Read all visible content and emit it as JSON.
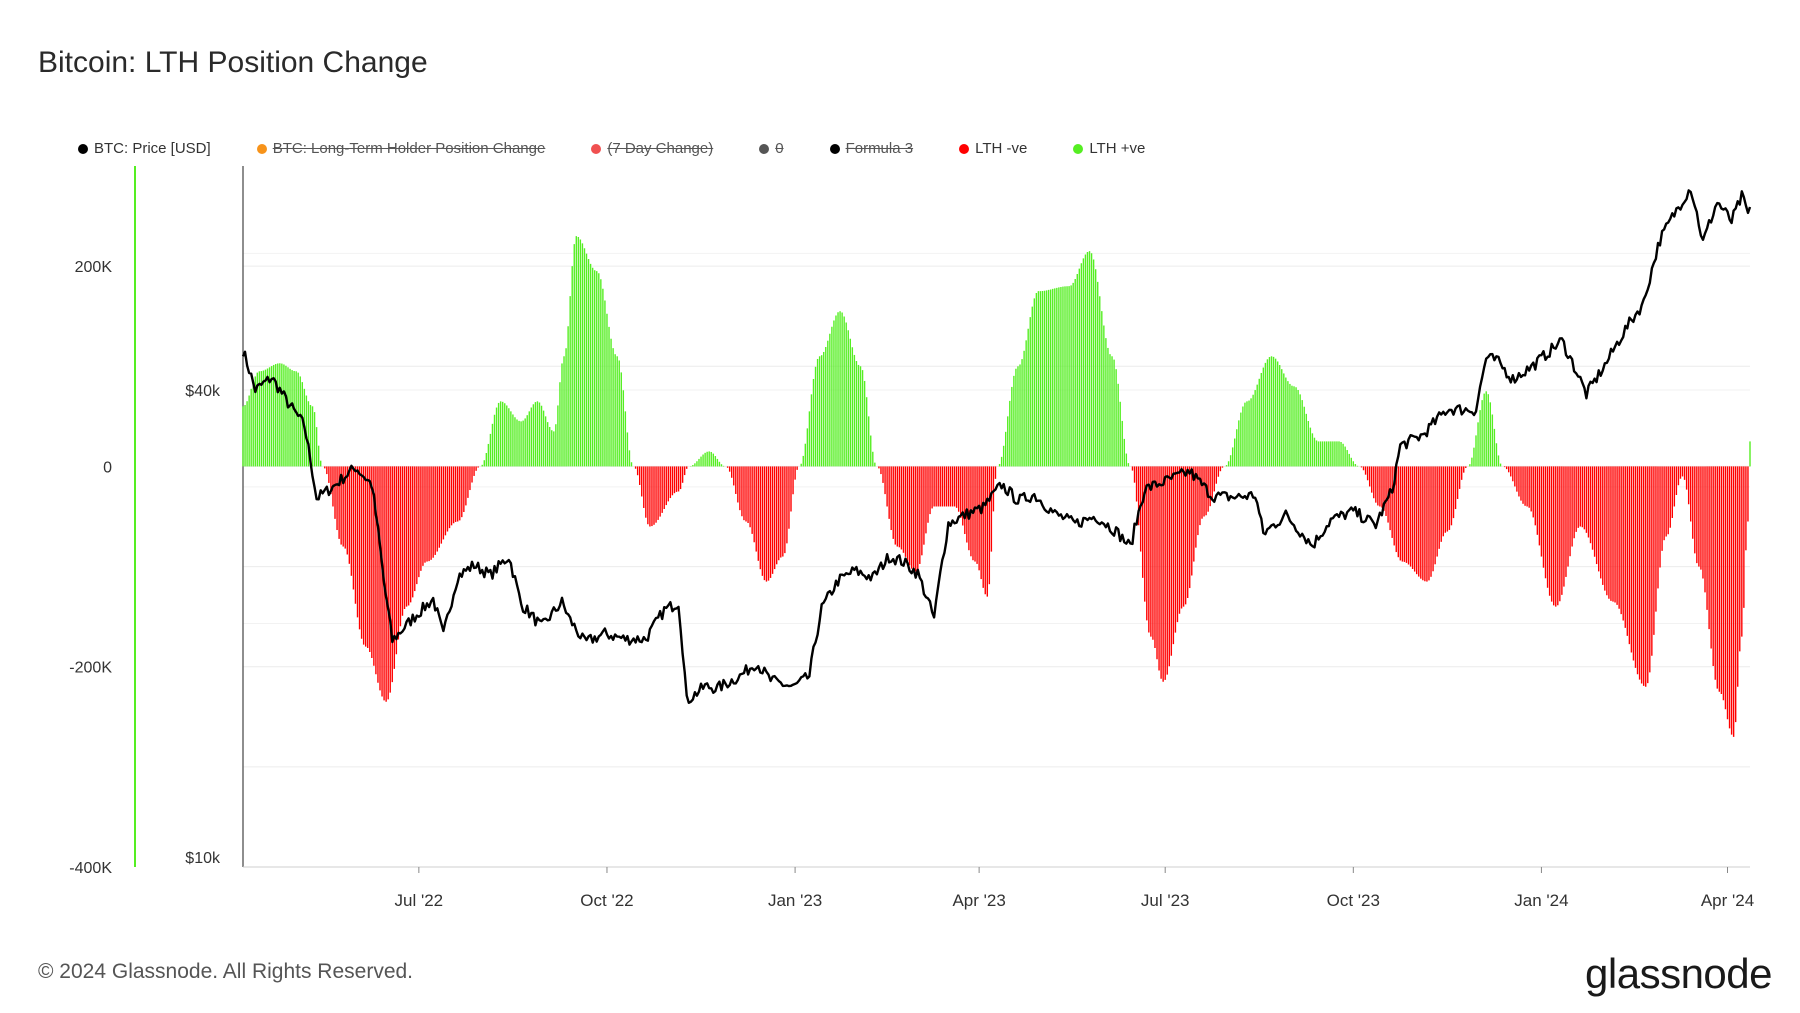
{
  "title": "Bitcoin: LTH Position Change",
  "legend": [
    {
      "label": "BTC: Price [USD]",
      "color": "#000000",
      "enabled": true
    },
    {
      "label": "BTC: Long-Term Holder Position Change",
      "color": "#f7931a",
      "enabled": false
    },
    {
      "label": "(7 Day Change)",
      "color": "#f05050",
      "enabled": false
    },
    {
      "label": "0",
      "color": "#555555",
      "enabled": false
    },
    {
      "label": "Formula 3",
      "color": "#000000",
      "enabled": false
    },
    {
      "label": "LTH -ve",
      "color": "#ff0000",
      "enabled": true
    },
    {
      "label": "LTH +ve",
      "color": "#55ee22",
      "enabled": true
    }
  ],
  "footer": "© 2024 Glassnode. All Rights Reserved.",
  "brand": "glassnode",
  "chart_data": {
    "type": "bar",
    "x_ticks": [
      "Jul '22",
      "Oct '22",
      "Jan '23",
      "Apr '23",
      "Jul '23",
      "Oct '23",
      "Jan '24",
      "Apr '24"
    ],
    "x_range": [
      "2022-04-06",
      "2024-04-12"
    ],
    "left_axis": {
      "ticks": [
        "200K",
        "0",
        "-200K",
        "-400K"
      ],
      "values": [
        200000,
        0,
        -200000,
        -400000
      ],
      "range": [
        -400000,
        300000
      ]
    },
    "right_axis": {
      "ticks": [
        "$40k",
        "$10k"
      ],
      "values": [
        40000,
        10000
      ],
      "scale": "log"
    },
    "grid": true,
    "position_change_anchors": [
      [
        "2022-04-06",
        60000
      ],
      [
        "2022-04-14",
        95000
      ],
      [
        "2022-04-24",
        103000
      ],
      [
        "2022-05-02",
        95000
      ],
      [
        "2022-05-10",
        60000
      ],
      [
        "2022-05-15",
        0
      ],
      [
        "2022-05-25",
        -80000
      ],
      [
        "2022-06-05",
        -180000
      ],
      [
        "2022-06-15",
        -235000
      ],
      [
        "2022-06-25",
        -140000
      ],
      [
        "2022-07-05",
        -95000
      ],
      [
        "2022-07-20",
        -55000
      ],
      [
        "2022-07-31",
        0
      ],
      [
        "2022-08-10",
        65000
      ],
      [
        "2022-08-20",
        45000
      ],
      [
        "2022-08-28",
        65000
      ],
      [
        "2022-09-05",
        35000
      ],
      [
        "2022-09-10",
        110000
      ],
      [
        "2022-09-16",
        230000
      ],
      [
        "2022-09-26",
        195000
      ],
      [
        "2022-10-06",
        110000
      ],
      [
        "2022-10-14",
        0
      ],
      [
        "2022-10-22",
        -60000
      ],
      [
        "2022-11-05",
        -25000
      ],
      [
        "2022-11-10",
        0
      ],
      [
        "2022-11-20",
        15000
      ],
      [
        "2022-11-28",
        0
      ],
      [
        "2022-12-08",
        -55000
      ],
      [
        "2022-12-18",
        -115000
      ],
      [
        "2022-12-26",
        -90000
      ],
      [
        "2023-01-03",
        0
      ],
      [
        "2023-01-13",
        110000
      ],
      [
        "2023-01-23",
        155000
      ],
      [
        "2023-02-02",
        100000
      ],
      [
        "2023-02-10",
        0
      ],
      [
        "2023-02-20",
        -80000
      ],
      [
        "2023-03-01",
        -105000
      ],
      [
        "2023-03-10",
        -40000
      ],
      [
        "2023-03-20",
        -40000
      ],
      [
        "2023-03-30",
        -95000
      ],
      [
        "2023-04-05",
        -130000
      ],
      [
        "2023-04-10",
        0
      ],
      [
        "2023-04-20",
        100000
      ],
      [
        "2023-04-30",
        175000
      ],
      [
        "2023-05-15",
        180000
      ],
      [
        "2023-05-25",
        215000
      ],
      [
        "2023-06-05",
        110000
      ],
      [
        "2023-06-14",
        0
      ],
      [
        "2023-06-24",
        -170000
      ],
      [
        "2023-06-30",
        -215000
      ],
      [
        "2023-07-10",
        -140000
      ],
      [
        "2023-07-20",
        -50000
      ],
      [
        "2023-07-30",
        0
      ],
      [
        "2023-08-10",
        65000
      ],
      [
        "2023-08-22",
        110000
      ],
      [
        "2023-09-02",
        80000
      ],
      [
        "2023-09-14",
        25000
      ],
      [
        "2023-09-24",
        25000
      ],
      [
        "2023-10-04",
        0
      ],
      [
        "2023-10-14",
        -40000
      ],
      [
        "2023-10-25",
        -95000
      ],
      [
        "2023-11-06",
        -115000
      ],
      [
        "2023-11-16",
        -65000
      ],
      [
        "2023-11-26",
        0
      ],
      [
        "2023-12-05",
        75000
      ],
      [
        "2023-12-13",
        0
      ],
      [
        "2023-12-25",
        -40000
      ],
      [
        "2024-01-08",
        -140000
      ],
      [
        "2024-01-20",
        -60000
      ],
      [
        "2024-02-05",
        -135000
      ],
      [
        "2024-02-21",
        -220000
      ],
      [
        "2024-03-02",
        -70000
      ],
      [
        "2024-03-10",
        -10000
      ],
      [
        "2024-03-18",
        -100000
      ],
      [
        "2024-03-28",
        -225000
      ],
      [
        "2024-04-04",
        -270000
      ],
      [
        "2024-04-08",
        -170000
      ],
      [
        "2024-04-11",
        -55000
      ],
      [
        "2024-04-12",
        25000
      ]
    ],
    "price_series": [
      [
        "2022-04-06",
        45000
      ],
      [
        "2022-04-12",
        40000
      ],
      [
        "2022-04-20",
        41500
      ],
      [
        "2022-04-28",
        38500
      ],
      [
        "2022-05-06",
        36000
      ],
      [
        "2022-05-12",
        29000
      ],
      [
        "2022-05-20",
        30000
      ],
      [
        "2022-05-31",
        31800
      ],
      [
        "2022-06-08",
        30200
      ],
      [
        "2022-06-14",
        22500
      ],
      [
        "2022-06-18",
        19000
      ],
      [
        "2022-06-28",
        20300
      ],
      [
        "2022-07-08",
        21500
      ],
      [
        "2022-07-13",
        19300
      ],
      [
        "2022-07-20",
        23000
      ],
      [
        "2022-07-28",
        23800
      ],
      [
        "2022-08-05",
        23100
      ],
      [
        "2022-08-14",
        24400
      ],
      [
        "2022-08-20",
        21200
      ],
      [
        "2022-08-30",
        19800
      ],
      [
        "2022-09-09",
        21300
      ],
      [
        "2022-09-13",
        20200
      ],
      [
        "2022-09-20",
        18900
      ],
      [
        "2022-09-30",
        19400
      ],
      [
        "2022-10-10",
        19100
      ],
      [
        "2022-10-20",
        19100
      ],
      [
        "2022-10-29",
        20800
      ],
      [
        "2022-11-05",
        21300
      ],
      [
        "2022-11-09",
        15900
      ],
      [
        "2022-11-18",
        16600
      ],
      [
        "2022-11-24",
        16500
      ],
      [
        "2022-12-05",
        17100
      ],
      [
        "2022-12-13",
        17800
      ],
      [
        "2022-12-20",
        16900
      ],
      [
        "2022-12-31",
        16550
      ],
      [
        "2023-01-08",
        17100
      ],
      [
        "2023-01-14",
        20900
      ],
      [
        "2023-01-22",
        22700
      ],
      [
        "2023-01-30",
        23400
      ],
      [
        "2023-02-08",
        22900
      ],
      [
        "2023-02-16",
        24400
      ],
      [
        "2023-02-22",
        24100
      ],
      [
        "2023-03-02",
        23200
      ],
      [
        "2023-03-10",
        20300
      ],
      [
        "2023-03-17",
        26900
      ],
      [
        "2023-03-25",
        27600
      ],
      [
        "2023-04-03",
        28200
      ],
      [
        "2023-04-12",
        30200
      ],
      [
        "2023-04-20",
        28800
      ],
      [
        "2023-04-28",
        29300
      ],
      [
        "2023-05-08",
        27700
      ],
      [
        "2023-05-18",
        26900
      ],
      [
        "2023-05-28",
        27500
      ],
      [
        "2023-06-07",
        26300
      ],
      [
        "2023-06-14",
        25100
      ],
      [
        "2023-06-21",
        29800
      ],
      [
        "2023-07-01",
        30500
      ],
      [
        "2023-07-13",
        31400
      ],
      [
        "2023-07-24",
        29200
      ],
      [
        "2023-08-05",
        29100
      ],
      [
        "2023-08-14",
        29300
      ],
      [
        "2023-08-18",
        26100
      ],
      [
        "2023-08-29",
        27600
      ],
      [
        "2023-09-11",
        25200
      ],
      [
        "2023-09-20",
        27200
      ],
      [
        "2023-10-01",
        27900
      ],
      [
        "2023-10-12",
        26800
      ],
      [
        "2023-10-20",
        29700
      ],
      [
        "2023-10-24",
        33900
      ],
      [
        "2023-11-04",
        35000
      ],
      [
        "2023-11-16",
        37800
      ],
      [
        "2023-11-30",
        37700
      ],
      [
        "2023-12-05",
        44000
      ],
      [
        "2023-12-10",
        43700
      ],
      [
        "2023-12-18",
        41300
      ],
      [
        "2023-12-28",
        43000
      ],
      [
        "2024-01-11",
        46300
      ],
      [
        "2024-01-23",
        39500
      ],
      [
        "2024-02-01",
        43000
      ],
      [
        "2024-02-12",
        48300
      ],
      [
        "2024-02-20",
        51800
      ],
      [
        "2024-02-28",
        62500
      ],
      [
        "2024-03-05",
        66800
      ],
      [
        "2024-03-14",
        73000
      ],
      [
        "2024-03-20",
        62000
      ],
      [
        "2024-03-27",
        69900
      ],
      [
        "2024-04-03",
        66000
      ],
      [
        "2024-04-08",
        71000
      ],
      [
        "2024-04-11",
        67500
      ],
      [
        "2024-04-12",
        68500
      ]
    ]
  }
}
